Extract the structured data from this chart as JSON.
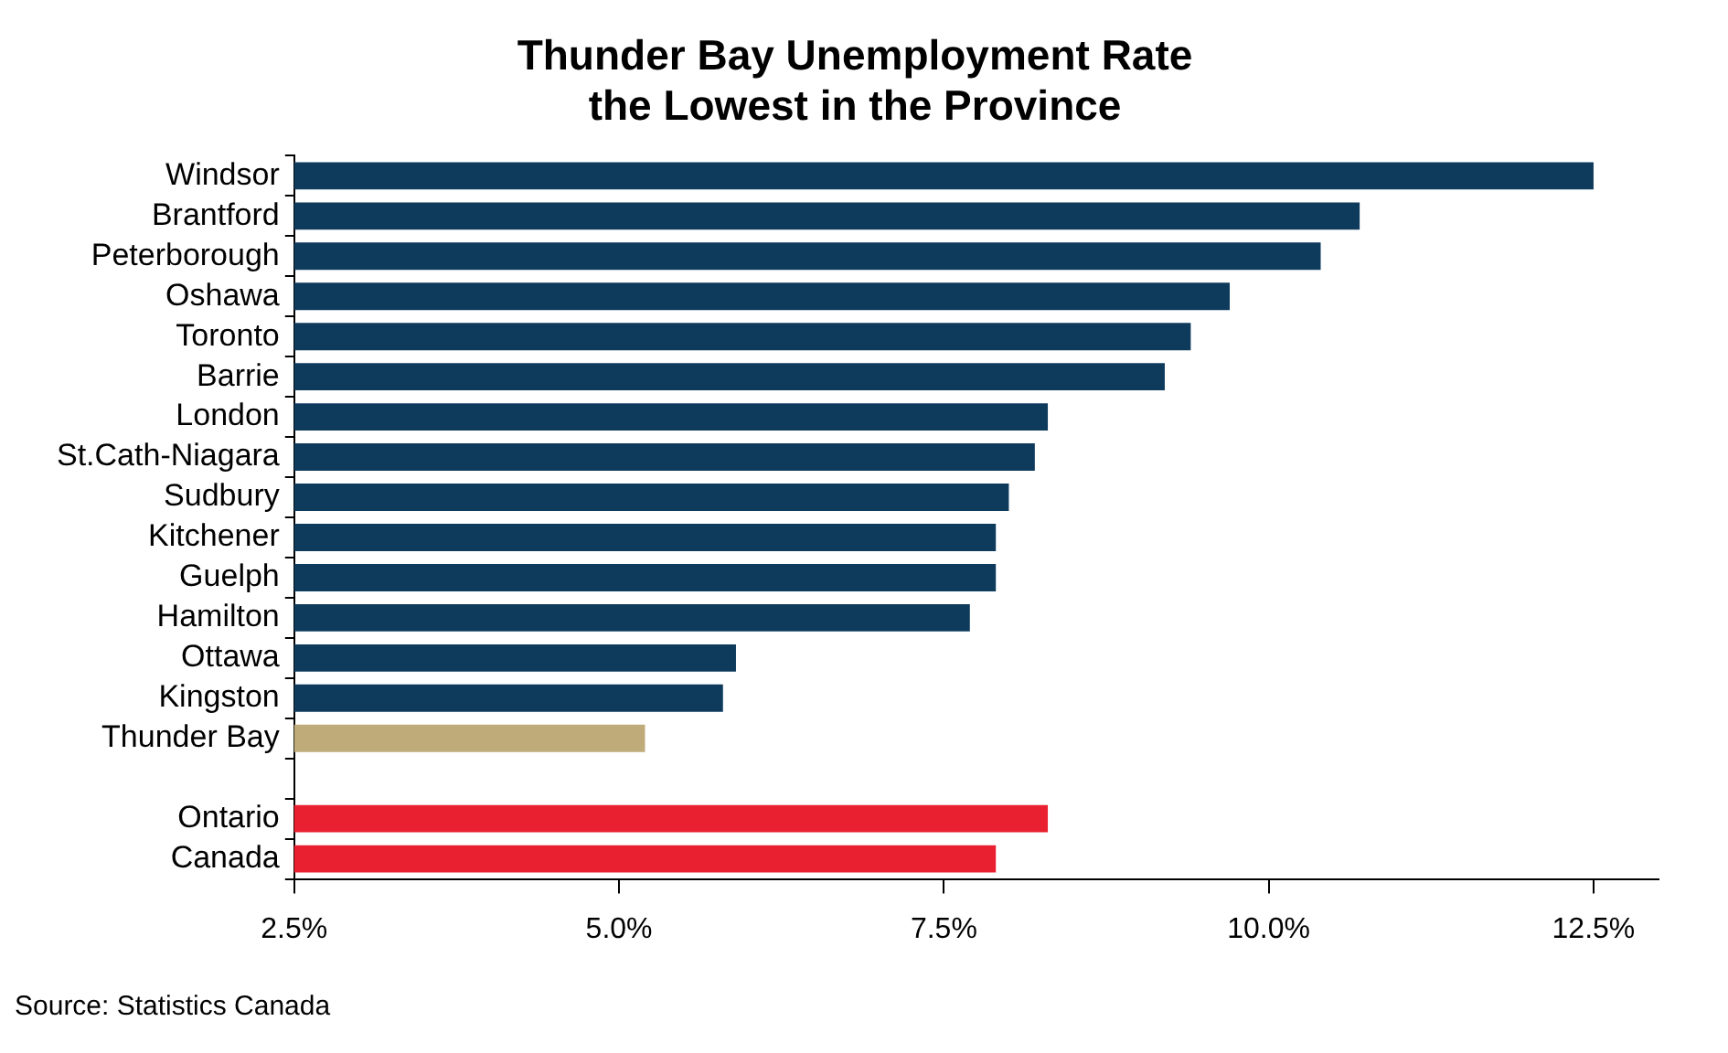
{
  "chart_data": {
    "type": "bar",
    "orientation": "horizontal",
    "title": "Thunder Bay Unemployment Rate\nthe Lowest in the Province",
    "categories": [
      "Windsor",
      "Brantford",
      "Peterborough",
      "Oshawa",
      "Toronto",
      "Barrie",
      "London",
      "St.Cath-Niagara",
      "Sudbury",
      "Kitchener",
      "Guelph",
      "Hamilton",
      "Ottawa",
      "Kingston",
      "Thunder Bay",
      null,
      "Ontario",
      "Canada"
    ],
    "values": [
      12.5,
      10.7,
      10.4,
      9.7,
      9.4,
      9.2,
      8.3,
      8.2,
      8.0,
      7.9,
      7.9,
      7.7,
      5.9,
      5.8,
      5.2,
      null,
      8.3,
      7.9
    ],
    "colors": [
      "#0e3a5c",
      "#0e3a5c",
      "#0e3a5c",
      "#0e3a5c",
      "#0e3a5c",
      "#0e3a5c",
      "#0e3a5c",
      "#0e3a5c",
      "#0e3a5c",
      "#0e3a5c",
      "#0e3a5c",
      "#0e3a5c",
      "#0e3a5c",
      "#0e3a5c",
      "#bfab7a",
      "#0e3a5c",
      "#e8202f",
      "#e8202f"
    ],
    "xlim": [
      2.5,
      13
    ],
    "xticks": [
      {
        "value": 2.5,
        "label": "2.5%"
      },
      {
        "value": 5,
        "label": "5.0%"
      },
      {
        "value": 7.5,
        "label": "7.5%"
      },
      {
        "value": 10,
        "label": "10.0%"
      },
      {
        "value": 12.5,
        "label": "12.5%"
      }
    ],
    "grid": false,
    "legend": false,
    "annotations": [
      "Source: Statistics Canada"
    ]
  }
}
